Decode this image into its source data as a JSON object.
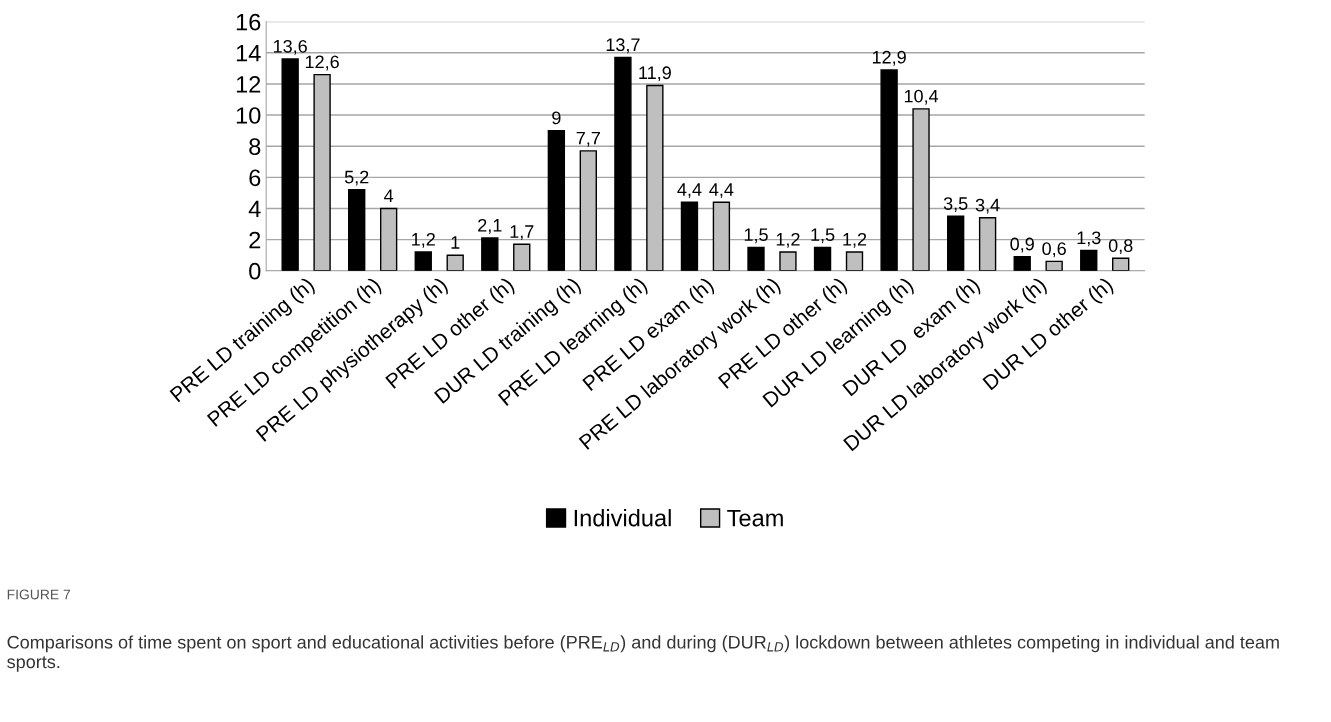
{
  "chart_data": {
    "type": "bar",
    "categories": [
      "PRE LD training (h)",
      "PRE LD competition (h)",
      "PRE LD physiotherapy (h)",
      "PRE LD other (h)",
      "DUR LD training (h)",
      "PRE LD learning (h)",
      "PRE LD exam (h)",
      "PRE LD laboratory work (h)",
      "PRE LD other (h)",
      "DUR LD learning (h)",
      "DUR LD  exam (h)",
      "DUR LD laboratory work (h)",
      "DUR LD other (h)"
    ],
    "series": [
      {
        "name": "Individual",
        "color": "#000000",
        "values": [
          13.6,
          5.2,
          1.2,
          2.1,
          9,
          13.7,
          4.4,
          1.5,
          1.5,
          12.9,
          3.5,
          0.9,
          1.3
        ],
        "value_labels": [
          "13,6",
          "5,2",
          "1,2",
          "2,1",
          "9",
          "13,7",
          "4,4",
          "1,5",
          "1,5",
          "12,9",
          "3,5",
          "0,9",
          "1,3"
        ]
      },
      {
        "name": "Team",
        "color": "#bfbfbf",
        "values": [
          12.6,
          4,
          1,
          1.7,
          7.7,
          11.9,
          4.4,
          1.2,
          1.2,
          10.4,
          3.4,
          0.6,
          0.8
        ],
        "value_labels": [
          "12,6",
          "4",
          "1",
          "1,7",
          "7,7",
          "11,9",
          "4,4",
          "1,2",
          "1,2",
          "10,4",
          "3,4",
          "0,6",
          "0,8"
        ]
      }
    ],
    "ylim": [
      0,
      16
    ],
    "yticks": [
      0,
      2,
      4,
      6,
      8,
      10,
      12,
      14,
      16
    ],
    "grid": "y",
    "legend": "bottom",
    "annotations": [
      "FIGURE 7",
      "Comparisons of time spent on sport and educational activities before (PRE$_{LD}$) and during (DUR$_{LD}$) lockdown between athletes competing in individual and team sports."
    ]
  }
}
